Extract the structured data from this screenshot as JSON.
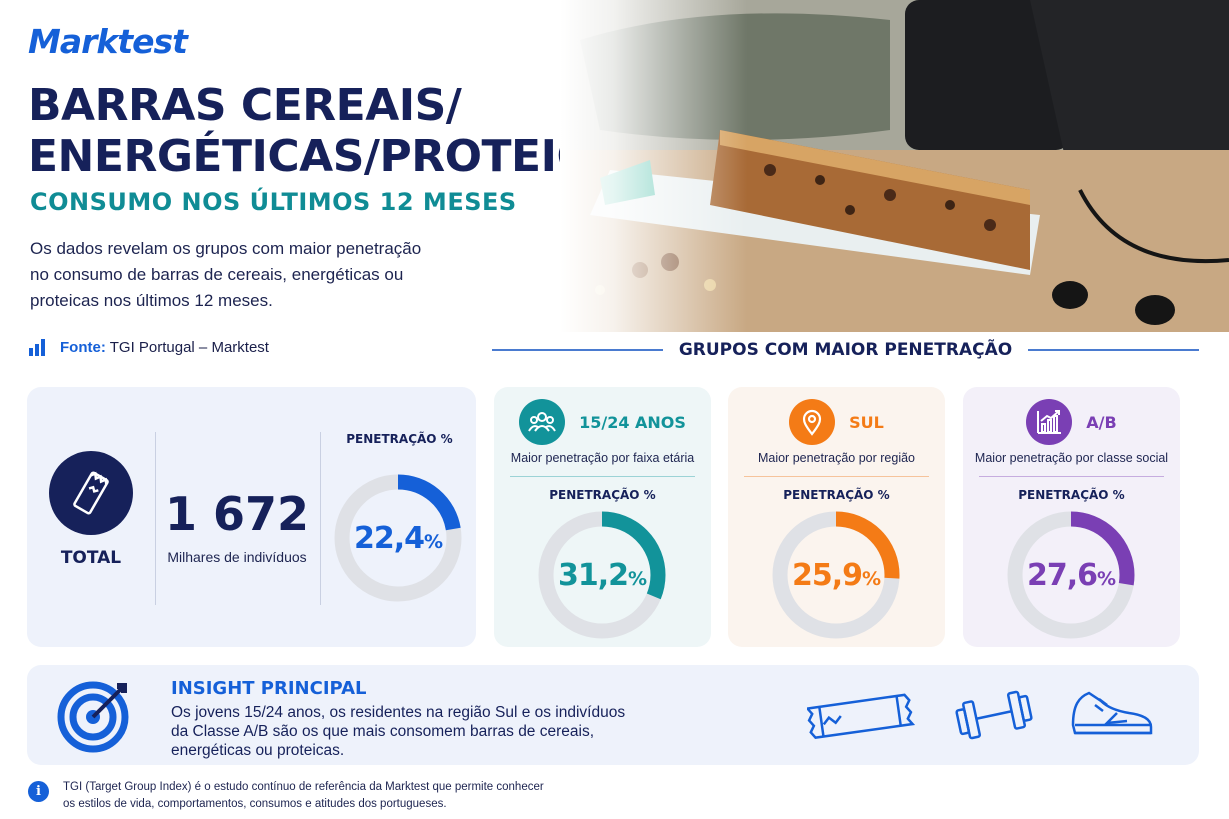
{
  "brand": {
    "logo": "Marktest"
  },
  "header": {
    "title_line1": "BARRAS CEREAIS/",
    "title_line2": "ENERGÉTICAS/PROTEICAS",
    "subtitle": "CONSUMO NOS ÚLTIMOS 12 MESES",
    "intro": "Os dados revelam os grupos com maior penetração no consumo de barras de cereais, energéticas ou proteicas nos últimos 12 meses.",
    "source_label": "Fonte:",
    "source_value": "TGI Portugal – Marktest"
  },
  "section_title": "GRUPOS COM MAIOR PENETRAÇÃO",
  "total": {
    "label": "TOTAL",
    "number": "1 672",
    "number_caption": "Milhares de indivíduos",
    "penetration_label": "PENETRAÇÃO %",
    "penetration_value": "22,4",
    "penetration_fraction": 0.224,
    "percent_sign": "%",
    "color": "#1560d8",
    "icon": "cereal-bar-icon"
  },
  "groups": [
    {
      "name": "15/24 ANOS",
      "description": "Maior penetração por faixa etária",
      "penetration_label": "PENETRAÇÃO %",
      "value": "31,2",
      "fraction": 0.312,
      "percent_sign": "%",
      "color": "#12939a",
      "icon": "people-group-icon"
    },
    {
      "name": "SUL",
      "description": "Maior penetração por região",
      "penetration_label": "PENETRAÇÃO %",
      "value": "25,9",
      "fraction": 0.259,
      "percent_sign": "%",
      "color": "#f47b16",
      "icon": "location-pin-icon"
    },
    {
      "name": "A/B",
      "description": "Maior penetração por classe social",
      "penetration_label": "PENETRAÇÃO %",
      "value": "27,6",
      "fraction": 0.276,
      "percent_sign": "%",
      "color": "#7a3fb4",
      "icon": "growth-chart-icon"
    }
  ],
  "insight": {
    "title": "INSIGHT PRINCIPAL",
    "text": "Os jovens 15/24 anos, os residentes na região Sul e os indivíduos da Classe A/B são os que mais consomem barras de cereais, energéticas ou proteicas.",
    "icons": [
      "target-icon",
      "bar-icon",
      "dumbbell-icon",
      "sneaker-icon"
    ]
  },
  "footnote": {
    "line1": "TGI (Target Group Index) é o estudo contínuo de referência da Marktest que permite conhecer",
    "line2": "os estilos de vida, comportamentos, consumos e atitudes dos portugueses."
  }
}
